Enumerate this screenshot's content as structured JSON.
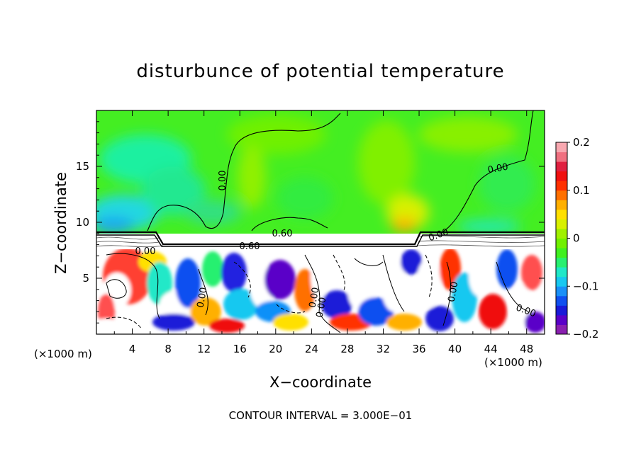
{
  "chart_data": {
    "type": "heatmap",
    "title": "disturbunce of potential temperature",
    "xlabel": "X−coordinate",
    "ylabel": "Z−coordinate",
    "x_unit_left": "(×1000 m)",
    "x_unit_right": "(×1000 m)",
    "xlim": [
      0,
      50
    ],
    "ylim": [
      0,
      20
    ],
    "x_ticks": [
      4,
      8,
      12,
      16,
      20,
      24,
      28,
      32,
      36,
      40,
      44,
      48
    ],
    "x_tick_labels": [
      "4",
      "8",
      "12",
      "16",
      "20",
      "24",
      "28",
      "32",
      "36",
      "40",
      "44",
      "48"
    ],
    "y_ticks": [
      5,
      10,
      15
    ],
    "y_tick_labels": [
      "5",
      "10",
      "15"
    ],
    "colorbar": {
      "range": [
        -0.2,
        0.2
      ],
      "ticks": [
        -0.2,
        -0.1,
        0,
        0.1,
        0.2
      ],
      "tick_labels": [
        "−0.2",
        "−0.1",
        "0",
        "0.1",
        "0.2"
      ],
      "colors": [
        "#8a1fb0",
        "#5a00c8",
        "#1a1ad8",
        "#1050f0",
        "#1a90f8",
        "#18c8f0",
        "#20e8c8",
        "#28f070",
        "#40f020",
        "#70f000",
        "#a0f000",
        "#d8f000",
        "#ffe000",
        "#ffb000",
        "#ff7000",
        "#ff3000",
        "#f01010",
        "#e02040",
        "#f07080",
        "#f8a8b0"
      ]
    },
    "contour_labels": [
      "0.00",
      "0.00",
      "0.00",
      "0.60",
      "0.60",
      "0.00",
      "0.00",
      "0.00",
      "0.00",
      "0.00",
      "0.00"
    ],
    "contour_interval_text": "CONTOUR INTERVAL = 3.000E−01"
  }
}
